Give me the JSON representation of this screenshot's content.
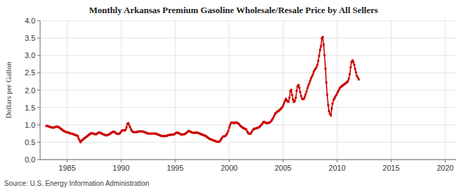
{
  "chart_data": {
    "type": "line",
    "title": "Monthly Arkansas Premium Gasoline Wholesale/Resale Price by All Sellers",
    "ylabel": "Dollars per Gallon",
    "annotations": [
      "Source: U.S. Energy Information Administration"
    ],
    "color": "#CC0000",
    "marker": "square",
    "grid": true,
    "xlim": [
      1982.5,
      2021
    ],
    "ylim": [
      0.0,
      4.0
    ],
    "xticks": [
      1985,
      1990,
      1995,
      2000,
      2005,
      2010,
      2015,
      2020
    ],
    "yticks": [
      {
        "value": 0.0,
        "label": "0.0"
      },
      0.5,
      {
        "value": 1.0,
        "label": "1.0"
      },
      1.5,
      {
        "value": 2.0,
        "label": "2.0"
      },
      2.5,
      {
        "value": 3.0,
        "label": "3.0"
      },
      3.5,
      {
        "value": 4.0,
        "label": "4.0"
      }
    ],
    "x": [
      1983.08,
      1983.17,
      1983.25,
      1983.33,
      1983.42,
      1983.5,
      1983.58,
      1983.67,
      1983.75,
      1983.83,
      1983.92,
      1984.0,
      1984.08,
      1984.17,
      1984.25,
      1984.33,
      1984.42,
      1984.5,
      1984.58,
      1984.67,
      1984.75,
      1984.83,
      1984.92,
      1985.0,
      1985.08,
      1985.17,
      1985.25,
      1985.33,
      1985.42,
      1985.5,
      1985.58,
      1985.67,
      1985.75,
      1985.83,
      1985.92,
      1986.0,
      1986.08,
      1986.17,
      1986.25,
      1986.33,
      1986.42,
      1986.5,
      1986.58,
      1986.67,
      1986.75,
      1986.83,
      1986.92,
      1987.0,
      1987.08,
      1987.17,
      1987.25,
      1987.33,
      1987.42,
      1987.5,
      1987.58,
      1987.67,
      1987.75,
      1987.83,
      1987.92,
      1988.0,
      1988.08,
      1988.17,
      1988.25,
      1988.33,
      1988.42,
      1988.5,
      1988.58,
      1988.67,
      1988.75,
      1988.83,
      1988.92,
      1989.0,
      1989.08,
      1989.17,
      1989.25,
      1989.33,
      1989.42,
      1989.5,
      1989.58,
      1989.67,
      1989.75,
      1989.83,
      1989.92,
      1990.0,
      1990.08,
      1990.17,
      1990.25,
      1990.33,
      1990.42,
      1990.5,
      1990.58,
      1990.67,
      1990.75,
      1990.83,
      1990.92,
      1991.0,
      1991.08,
      1991.17,
      1991.25,
      1991.33,
      1991.42,
      1991.5,
      1991.58,
      1991.67,
      1991.75,
      1991.83,
      1991.92,
      1992.0,
      1992.08,
      1992.17,
      1992.25,
      1992.33,
      1992.42,
      1992.5,
      1992.58,
      1992.67,
      1992.75,
      1992.83,
      1992.92,
      1993.0,
      1993.08,
      1993.17,
      1993.25,
      1993.33,
      1993.42,
      1993.5,
      1993.58,
      1993.67,
      1993.75,
      1993.83,
      1993.92,
      1994.0,
      1994.08,
      1994.17,
      1994.25,
      1994.33,
      1994.42,
      1994.5,
      1994.58,
      1994.67,
      1994.75,
      1994.83,
      1994.92,
      1995.0,
      1995.08,
      1995.17,
      1995.25,
      1995.33,
      1995.42,
      1995.5,
      1995.58,
      1995.67,
      1995.75,
      1995.83,
      1995.92,
      1996.0,
      1996.08,
      1996.17,
      1996.25,
      1996.33,
      1996.42,
      1996.5,
      1996.58,
      1996.67,
      1996.75,
      1996.83,
      1996.92,
      1997.0,
      1997.08,
      1997.17,
      1997.25,
      1997.33,
      1997.42,
      1997.5,
      1997.58,
      1997.67,
      1997.75,
      1997.83,
      1997.92,
      1998.0,
      1998.08,
      1998.17,
      1998.25,
      1998.33,
      1998.42,
      1998.5,
      1998.58,
      1998.67,
      1998.75,
      1998.83,
      1998.92,
      1999.0,
      1999.08,
      1999.17,
      1999.25,
      1999.33,
      1999.42,
      1999.5,
      1999.58,
      1999.67,
      1999.75,
      1999.83,
      1999.92,
      2000.0,
      2000.08,
      2000.17,
      2000.25,
      2000.33,
      2000.42,
      2000.5,
      2000.58,
      2000.67,
      2000.75,
      2000.83,
      2000.92,
      2001.0,
      2001.08,
      2001.17,
      2001.25,
      2001.33,
      2001.42,
      2001.5,
      2001.58,
      2001.67,
      2001.75,
      2001.83,
      2001.92,
      2002.0,
      2002.08,
      2002.17,
      2002.25,
      2002.33,
      2002.42,
      2002.5,
      2002.58,
      2002.67,
      2002.75,
      2002.83,
      2002.92,
      2003.0,
      2003.08,
      2003.17,
      2003.25,
      2003.33,
      2003.42,
      2003.5,
      2003.58,
      2003.67,
      2003.75,
      2003.83,
      2003.92,
      2004.0,
      2004.08,
      2004.17,
      2004.25,
      2004.33,
      2004.42,
      2004.5,
      2004.58,
      2004.67,
      2004.75,
      2004.83,
      2004.92,
      2005.0,
      2005.08,
      2005.17,
      2005.25,
      2005.33,
      2005.42,
      2005.5,
      2005.58,
      2005.67,
      2005.75,
      2005.83,
      2005.92,
      2006.0,
      2006.08,
      2006.17,
      2006.25,
      2006.33,
      2006.42,
      2006.5,
      2006.58,
      2006.67,
      2006.75,
      2006.83,
      2006.92,
      2007.0,
      2007.08,
      2007.17,
      2007.25,
      2007.33,
      2007.42,
      2007.5,
      2007.58,
      2007.67,
      2007.75,
      2007.83,
      2007.92,
      2008.0,
      2008.08,
      2008.17,
      2008.25,
      2008.33,
      2008.42,
      2008.5,
      2008.58,
      2008.67,
      2008.75,
      2008.83,
      2008.92,
      2009.0,
      2009.08,
      2009.17,
      2009.25,
      2009.33,
      2009.42,
      2009.5,
      2009.58,
      2009.67,
      2009.75,
      2009.83,
      2009.92,
      2010.0,
      2010.08,
      2010.17,
      2010.25,
      2010.33,
      2010.42,
      2010.5,
      2010.58,
      2010.67,
      2010.75,
      2010.83,
      2010.92,
      2011.0,
      2011.08,
      2011.17,
      2011.25,
      2011.33,
      2011.42,
      2011.5,
      2011.58,
      2011.67,
      2011.75,
      2011.83,
      2011.92,
      2012.0
    ],
    "values": [
      0.97,
      0.97,
      0.96,
      0.95,
      0.94,
      0.93,
      0.93,
      0.92,
      0.92,
      0.93,
      0.94,
      0.95,
      0.95,
      0.94,
      0.93,
      0.91,
      0.89,
      0.87,
      0.85,
      0.83,
      0.82,
      0.8,
      0.79,
      0.79,
      0.78,
      0.77,
      0.76,
      0.75,
      0.75,
      0.74,
      0.73,
      0.72,
      0.71,
      0.7,
      0.69,
      0.67,
      0.6,
      0.54,
      0.5,
      0.54,
      0.57,
      0.59,
      0.61,
      0.63,
      0.65,
      0.67,
      0.69,
      0.71,
      0.73,
      0.75,
      0.76,
      0.76,
      0.75,
      0.74,
      0.73,
      0.73,
      0.74,
      0.76,
      0.78,
      0.78,
      0.77,
      0.76,
      0.74,
      0.73,
      0.72,
      0.71,
      0.7,
      0.7,
      0.71,
      0.72,
      0.73,
      0.75,
      0.77,
      0.79,
      0.8,
      0.8,
      0.79,
      0.77,
      0.75,
      0.74,
      0.74,
      0.75,
      0.77,
      0.81,
      0.84,
      0.85,
      0.84,
      0.84,
      0.86,
      0.93,
      1.03,
      1.05,
      0.99,
      0.93,
      0.87,
      0.83,
      0.8,
      0.79,
      0.79,
      0.79,
      0.79,
      0.8,
      0.81,
      0.81,
      0.81,
      0.81,
      0.81,
      0.81,
      0.8,
      0.79,
      0.78,
      0.77,
      0.76,
      0.75,
      0.75,
      0.75,
      0.75,
      0.75,
      0.75,
      0.75,
      0.75,
      0.75,
      0.75,
      0.73,
      0.72,
      0.71,
      0.7,
      0.69,
      0.68,
      0.68,
      0.68,
      0.68,
      0.68,
      0.68,
      0.69,
      0.7,
      0.71,
      0.71,
      0.71,
      0.72,
      0.72,
      0.72,
      0.73,
      0.75,
      0.77,
      0.78,
      0.77,
      0.76,
      0.75,
      0.73,
      0.72,
      0.72,
      0.73,
      0.73,
      0.74,
      0.76,
      0.78,
      0.81,
      0.82,
      0.82,
      0.8,
      0.79,
      0.78,
      0.77,
      0.77,
      0.77,
      0.78,
      0.78,
      0.77,
      0.76,
      0.76,
      0.74,
      0.73,
      0.72,
      0.71,
      0.7,
      0.69,
      0.68,
      0.66,
      0.64,
      0.62,
      0.6,
      0.59,
      0.58,
      0.57,
      0.56,
      0.55,
      0.54,
      0.53,
      0.52,
      0.51,
      0.51,
      0.52,
      0.54,
      0.58,
      0.62,
      0.66,
      0.67,
      0.67,
      0.69,
      0.72,
      0.76,
      0.83,
      0.92,
      0.99,
      1.05,
      1.07,
      1.06,
      1.06,
      1.05,
      1.07,
      1.07,
      1.06,
      1.04,
      1.02,
      0.99,
      0.96,
      0.94,
      0.92,
      0.91,
      0.89,
      0.88,
      0.87,
      0.81,
      0.77,
      0.75,
      0.74,
      0.75,
      0.79,
      0.84,
      0.87,
      0.89,
      0.89,
      0.9,
      0.91,
      0.92,
      0.93,
      0.95,
      0.98,
      1.0,
      1.04,
      1.08,
      1.09,
      1.07,
      1.06,
      1.05,
      1.05,
      1.06,
      1.07,
      1.09,
      1.12,
      1.16,
      1.2,
      1.26,
      1.32,
      1.34,
      1.37,
      1.39,
      1.4,
      1.43,
      1.45,
      1.48,
      1.51,
      1.56,
      1.62,
      1.69,
      1.75,
      1.71,
      1.67,
      1.67,
      1.78,
      1.97,
      2.01,
      1.86,
      1.73,
      1.66,
      1.69,
      1.78,
      1.98,
      2.11,
      2.15,
      2.07,
      1.94,
      1.83,
      1.76,
      1.74,
      1.75,
      1.81,
      1.88,
      1.96,
      2.06,
      2.13,
      2.19,
      2.27,
      2.34,
      2.39,
      2.45,
      2.53,
      2.58,
      2.62,
      2.66,
      2.73,
      2.84,
      2.99,
      3.16,
      3.26,
      3.49,
      3.53,
      3.31,
      3.01,
      2.62,
      2.22,
      1.87,
      1.57,
      1.4,
      1.32,
      1.27,
      1.47,
      1.62,
      1.72,
      1.76,
      1.81,
      1.86,
      1.91,
      1.96,
      2.01,
      2.06,
      2.09,
      2.11,
      2.13,
      2.15,
      2.17,
      2.19,
      2.21,
      2.23,
      2.26,
      2.33,
      2.46,
      2.66,
      2.81,
      2.86,
      2.81,
      2.73,
      2.61,
      2.51,
      2.41,
      2.36,
      2.31
    ]
  }
}
